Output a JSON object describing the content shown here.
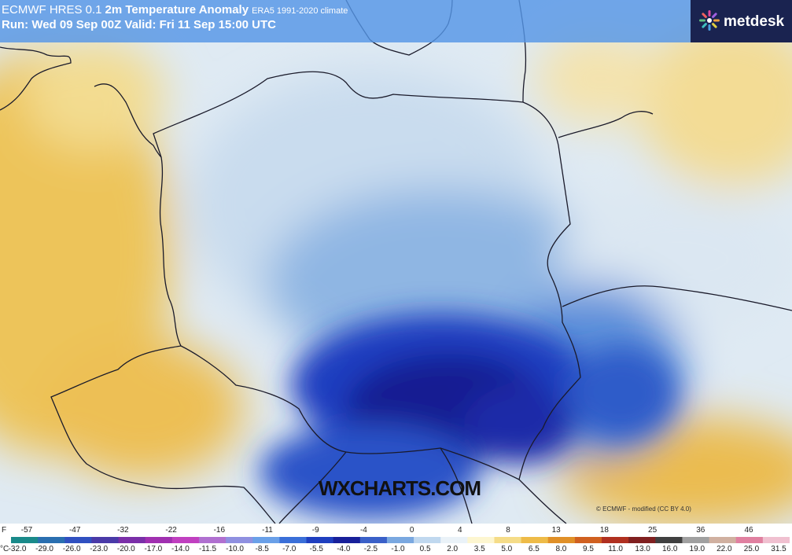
{
  "header": {
    "model": "ECMWF HRES 0.1",
    "title": "2m Temperature Anomaly",
    "climate": "ERA5 1991-2020 climate",
    "run_line": "Run: Wed 09 Sep 00Z Valid: Fri 11 Sep 15:00 UTC"
  },
  "logo": {
    "text": "metdesk",
    "icon": "metdesk-flower-icon"
  },
  "watermark": "WXCHARTS.COM",
  "credit": "© ECMWF - modified (CC BY 4.0)",
  "legend": {
    "f_unit": "F",
    "c_unit": "°C",
    "f_ticks": [
      "-57",
      "-47",
      "-32",
      "-22",
      "-16",
      "-11",
      "-9",
      "-4",
      "0",
      "4",
      "8",
      "13",
      "18",
      "25",
      "36",
      "46"
    ],
    "c_ticks": [
      "-32.0",
      "-29.0",
      "-26.0",
      "-23.0",
      "-20.0",
      "-17.0",
      "-14.0",
      "-11.5",
      "-10.0",
      "-8.5",
      "-7.0",
      "-5.5",
      "-4.0",
      "-2.5",
      "-1.0",
      "0.5",
      "2.0",
      "3.5",
      "5.0",
      "6.5",
      "8.0",
      "9.5",
      "11.0",
      "13.0",
      "16.0",
      "19.0",
      "22.0",
      "25.0",
      "31.5"
    ],
    "colors": [
      "#1a8a8a",
      "#2a6fb0",
      "#3050c0",
      "#4a3aa8",
      "#7a2fa8",
      "#a030b0",
      "#c040c0",
      "#b070d0",
      "#8f90e0",
      "#6aa0e8",
      "#3a6fd8",
      "#1f3fbf",
      "#18209a",
      "#3a60c8",
      "#7aa8e0",
      "#c0d8ef",
      "#eaf2f8",
      "#fdf6d0",
      "#f5dc88",
      "#eebb48",
      "#e09028",
      "#d06020",
      "#b03020",
      "#802020",
      "#404040",
      "#a0a0a0",
      "#d0b0a0",
      "#e080a0",
      "#f0c0d0"
    ]
  },
  "colors": {
    "header_bg": "#5596e6",
    "logo_bg": "#1a2350",
    "cold_deep": "#1a1f9a",
    "cold_mid": "#3f7fd0",
    "cold_light": "#dbe8f2",
    "warm": "#ecc055"
  }
}
